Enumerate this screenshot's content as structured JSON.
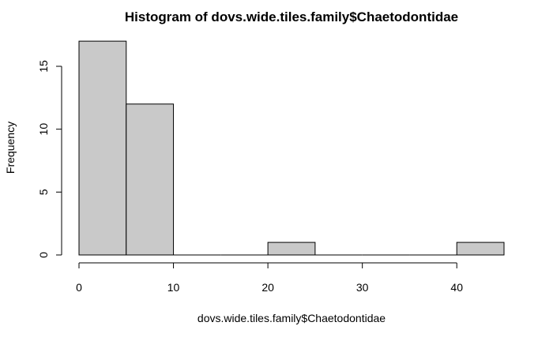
{
  "chart_data": {
    "type": "bar",
    "title": "Histogram of dovs.wide.tiles.family$Chaetodontidae",
    "xlabel": "dovs.wide.tiles.family$Chaetodontidae",
    "ylabel": "Frequency",
    "bins": [
      {
        "start": 0,
        "end": 5,
        "count": 17
      },
      {
        "start": 5,
        "end": 10,
        "count": 12
      },
      {
        "start": 10,
        "end": 15,
        "count": 0
      },
      {
        "start": 15,
        "end": 20,
        "count": 0
      },
      {
        "start": 20,
        "end": 25,
        "count": 1
      },
      {
        "start": 25,
        "end": 30,
        "count": 0
      },
      {
        "start": 30,
        "end": 35,
        "count": 0
      },
      {
        "start": 35,
        "end": 40,
        "count": 0
      },
      {
        "start": 40,
        "end": 45,
        "count": 1
      }
    ],
    "x_ticks": [
      0,
      10,
      20,
      30,
      40
    ],
    "y_ticks": [
      0,
      5,
      10,
      15
    ],
    "xlim": [
      0,
      45
    ],
    "ylim": [
      0,
      17
    ],
    "grid": false,
    "colors": {
      "bar_fill": "#c9c9c9",
      "bar_stroke": "#000000"
    }
  }
}
